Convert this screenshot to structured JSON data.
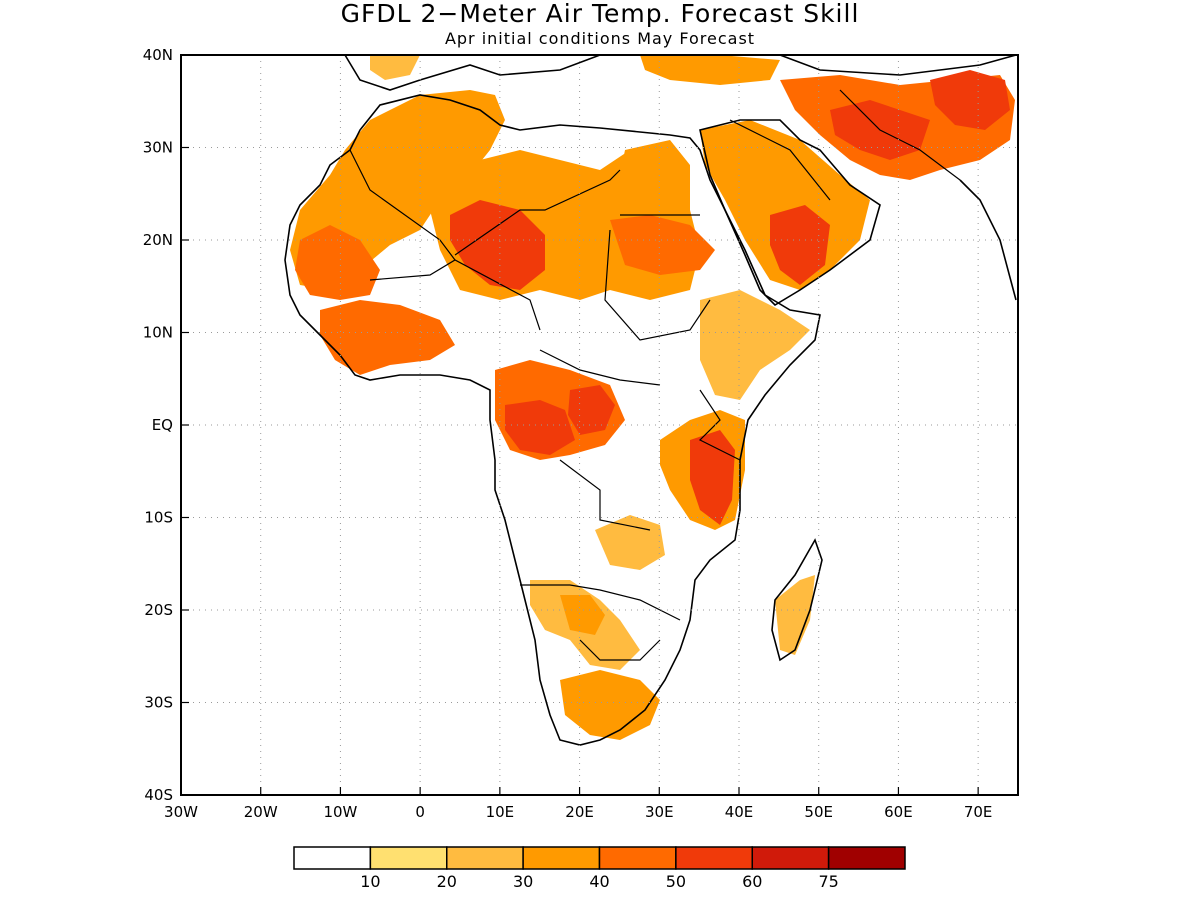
{
  "title": "GFDL 2−Meter Air Temp. Forecast Skill",
  "subtitle": "Apr initial conditions   May Forecast",
  "map": {
    "lon_range": [
      -30,
      75
    ],
    "lat_range": [
      -40,
      40
    ],
    "lon_ticks": [
      {
        "value": -30,
        "label": "30W"
      },
      {
        "value": -20,
        "label": "20W"
      },
      {
        "value": -10,
        "label": "10W"
      },
      {
        "value": 0,
        "label": "0"
      },
      {
        "value": 10,
        "label": "10E"
      },
      {
        "value": 20,
        "label": "20E"
      },
      {
        "value": 30,
        "label": "30E"
      },
      {
        "value": 40,
        "label": "40E"
      },
      {
        "value": 50,
        "label": "50E"
      },
      {
        "value": 60,
        "label": "60E"
      },
      {
        "value": 70,
        "label": "70E"
      }
    ],
    "lat_ticks": [
      {
        "value": 40,
        "label": "40N"
      },
      {
        "value": 30,
        "label": "30N"
      },
      {
        "value": 20,
        "label": "20N"
      },
      {
        "value": 10,
        "label": "10N"
      },
      {
        "value": 0,
        "label": "EQ"
      },
      {
        "value": -10,
        "label": "10S"
      },
      {
        "value": -20,
        "label": "20S"
      },
      {
        "value": -30,
        "label": "30S"
      },
      {
        "value": -40,
        "label": "40S"
      }
    ],
    "grid": "dotted"
  },
  "colorbar": {
    "colors": [
      "#ffffff",
      "#ffe070",
      "#ffbb40",
      "#ff9a00",
      "#ff6a00",
      "#f03a0a",
      "#d01a0a",
      "#a00000"
    ],
    "labels": [
      "10",
      "20",
      "30",
      "40",
      "50",
      "60",
      "75"
    ]
  }
}
